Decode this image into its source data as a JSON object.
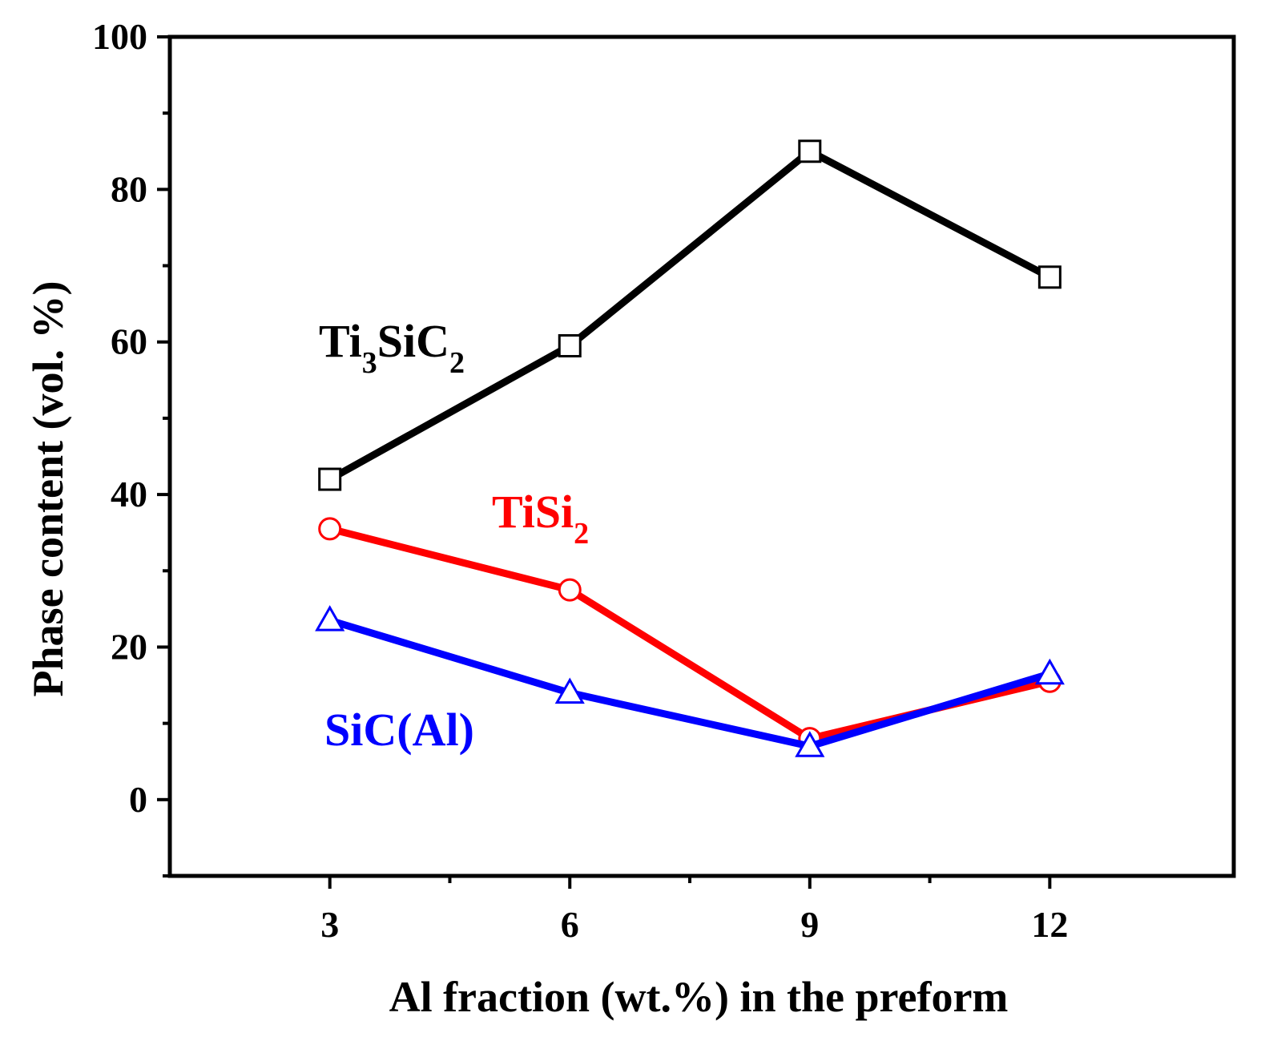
{
  "chart_data": {
    "type": "line",
    "xlabel": "Al fraction (wt.%) in the preform",
    "ylabel": "Phase content (vol. %)",
    "xlim": [
      1.0,
      14.3
    ],
    "ylim": [
      -10,
      100
    ],
    "xticks": [
      3,
      6,
      9,
      12
    ],
    "xticks_minor": [
      4.5,
      7.5,
      10.5
    ],
    "yticks": [
      0,
      20,
      40,
      60,
      80,
      100
    ],
    "yticks_minor": [
      -10,
      10,
      30,
      50,
      70,
      90
    ],
    "grid": false,
    "series": [
      {
        "name": "Ti3SiC2",
        "label_main": "Ti",
        "label_sub1": "3",
        "label_mid": "SiC",
        "label_sub2": "2",
        "color": "#000000",
        "marker": "square",
        "x": [
          3,
          6,
          9,
          12
        ],
        "values": [
          42,
          59.5,
          85,
          68.5
        ]
      },
      {
        "name": "TiSi2",
        "label_main": "TiSi",
        "label_sub1": "2",
        "color": "#ff0000",
        "marker": "circle",
        "x": [
          3,
          6,
          9,
          12
        ],
        "values": [
          35.5,
          27.5,
          8,
          15.5
        ]
      },
      {
        "name": "SiC(Al)",
        "label_main": "SiC(Al)",
        "color": "#0000ff",
        "marker": "triangle",
        "x": [
          3,
          6,
          9,
          12
        ],
        "values": [
          23.5,
          14,
          7,
          16.5
        ]
      }
    ]
  }
}
